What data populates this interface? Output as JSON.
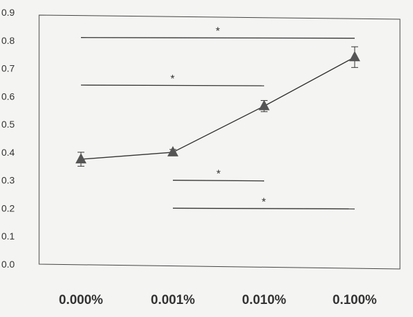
{
  "chart_data": {
    "type": "line",
    "categories": [
      "0.000%",
      "0.001%",
      "0.010%",
      "0.100%"
    ],
    "series": [
      {
        "values": [
          0.375,
          0.4,
          0.565,
          0.74
        ],
        "error": [
          0.025,
          0.01,
          0.02,
          0.037
        ],
        "marker": "triangle",
        "color": "#555555"
      }
    ],
    "ylim": [
      0.0,
      0.9
    ],
    "yticks": [
      "0.0",
      "0.1",
      "0.2",
      "0.3",
      "0.4",
      "0.5",
      "0.6",
      "0.7",
      "0.8",
      "0.9"
    ],
    "grid": false,
    "significance": [
      {
        "from": "0.000%",
        "to": "0.100%",
        "y": 0.81,
        "label": "*"
      },
      {
        "from": "0.000%",
        "to": "0.010%",
        "y": 0.64,
        "label": "*"
      },
      {
        "from": "0.001%",
        "to": "0.010%",
        "y": 0.3,
        "label": "*"
      },
      {
        "from": "0.001%",
        "to": "0.100%",
        "y": 0.2,
        "label": "*"
      }
    ]
  }
}
